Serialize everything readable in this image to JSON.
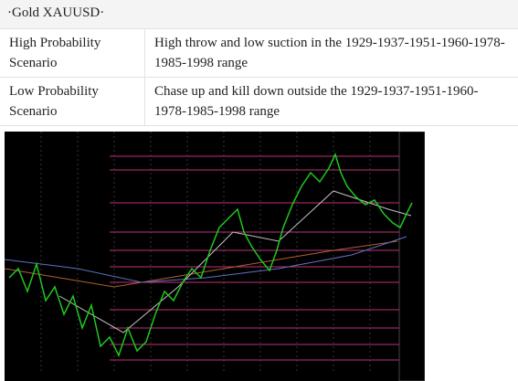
{
  "title": "·Gold XAUUSD·",
  "table": {
    "rows": [
      [
        "High Probability Scenario",
        "High throw and low suction in the 1929-1937-1951-1960-1978-1985-1998 range"
      ],
      [
        "Low Probability Scenario",
        "Chase up and kill down outside the 1929-1937-1951-1960-1978-1985-1998 range"
      ]
    ]
  }
}
